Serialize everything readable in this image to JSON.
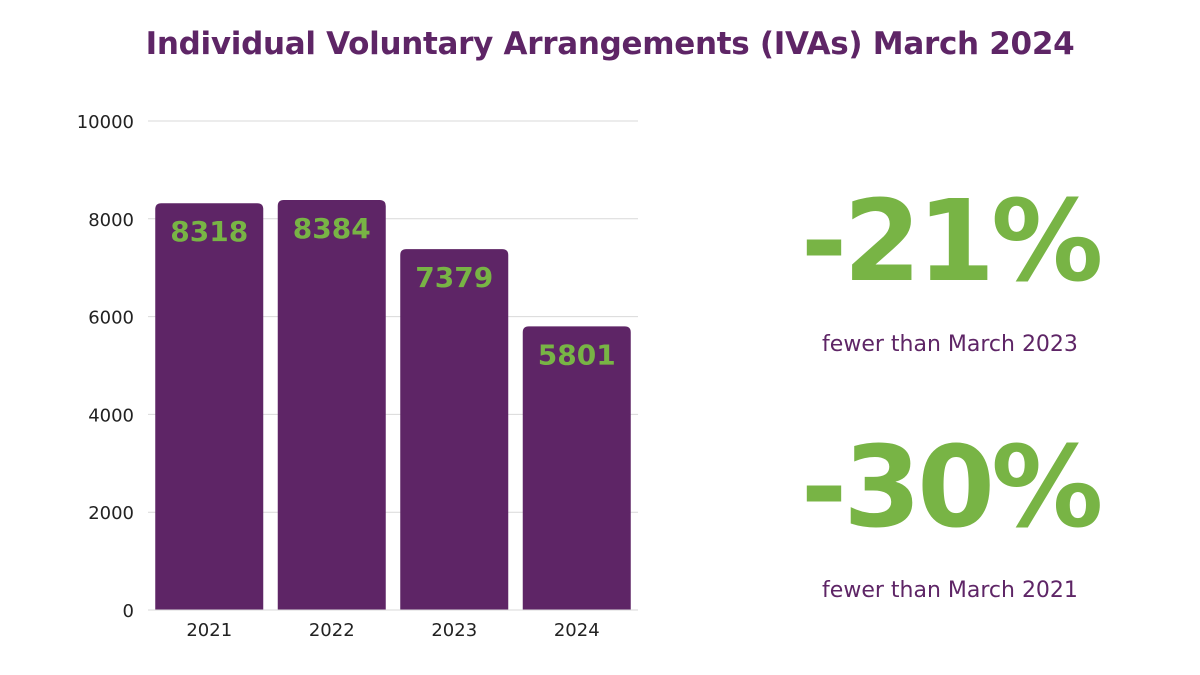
{
  "colors": {
    "bar": "#5e2566",
    "accent": "#78b445",
    "grid": "#d9d9d9",
    "text": "#222222"
  },
  "chart_data": {
    "type": "bar",
    "title": "Individual Voluntary Arrangements (IVAs) March 2024",
    "categories": [
      "2021",
      "2022",
      "2023",
      "2024"
    ],
    "values": [
      8318,
      8384,
      7379,
      5801
    ],
    "data_labels": [
      "8318",
      "8384",
      "7379",
      "5801"
    ],
    "ylim": [
      0,
      10000
    ],
    "yticks": [
      0,
      2000,
      4000,
      6000,
      8000,
      10000
    ],
    "grid": true,
    "legend": "none"
  },
  "stats": [
    {
      "value": "-21%",
      "label": "fewer than March 2023"
    },
    {
      "value": "-30%",
      "label": "fewer than March 2021"
    }
  ]
}
